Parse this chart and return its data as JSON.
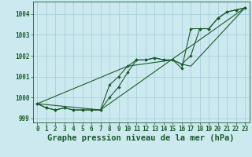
{
  "background_color": "#cce9f0",
  "grid_color": "#aacfdb",
  "line_color": "#1a5c2a",
  "marker_color": "#1a5c2a",
  "xlabel": "Graphe pression niveau de la mer (hPa)",
  "xlabel_fontsize": 7.5,
  "tick_fontsize": 5.5,
  "xlim": [
    -0.5,
    23.5
  ],
  "ylim": [
    998.8,
    1004.6
  ],
  "yticks": [
    999,
    1000,
    1001,
    1002,
    1003,
    1004
  ],
  "xticks": [
    0,
    1,
    2,
    3,
    4,
    5,
    6,
    7,
    8,
    9,
    10,
    11,
    12,
    13,
    14,
    15,
    16,
    17,
    18,
    19,
    20,
    21,
    22,
    23
  ],
  "hours": [
    0,
    1,
    2,
    3,
    4,
    5,
    6,
    7,
    8,
    9,
    10,
    11,
    12,
    13,
    14,
    15,
    16,
    17,
    18,
    19,
    20,
    21,
    22,
    23
  ],
  "series1": [
    999.7,
    999.5,
    999.4,
    999.5,
    999.4,
    999.4,
    999.4,
    999.4,
    1000.0,
    1000.5,
    1001.2,
    1001.8,
    1001.8,
    1001.9,
    1001.8,
    1001.8,
    1001.6,
    1002.0,
    1003.3,
    1003.3,
    1003.8,
    1004.1,
    1004.2,
    1004.3
  ],
  "series2": [
    999.7,
    999.5,
    999.4,
    999.5,
    999.4,
    999.4,
    999.4,
    999.4,
    1000.6,
    1001.0,
    1001.5,
    1001.8,
    1001.8,
    1001.9,
    1001.8,
    1001.8,
    1001.4,
    1003.3,
    1003.3,
    1003.3,
    1003.8,
    1004.1,
    1004.2,
    1004.3
  ],
  "series3_x": [
    0,
    7,
    23
  ],
  "series3_y": [
    999.7,
    999.4,
    1004.3
  ],
  "series4_x": [
    0,
    10,
    15,
    16,
    17,
    23
  ],
  "series4_y": [
    999.7,
    1001.5,
    1001.8,
    1001.6,
    1001.5,
    1004.3
  ]
}
